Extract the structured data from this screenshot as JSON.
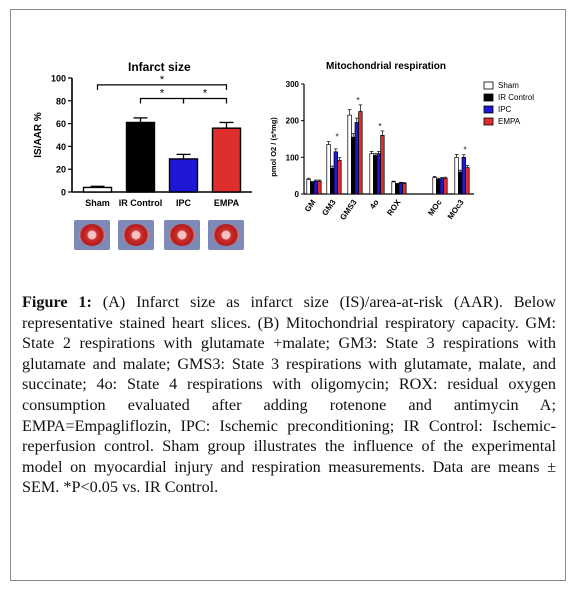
{
  "colors": {
    "sham": "#ffffff",
    "ir_control": "#000000",
    "ipc": "#1f16d6",
    "empa": "#de2e2e",
    "axis": "#000000",
    "frame": "#8a8a8a"
  },
  "chart_data": [
    {
      "type": "bar",
      "title": "Infarct size",
      "xlabel": "",
      "ylabel": "IS/AAR %",
      "ylim": [
        0,
        100
      ],
      "yticks": [
        "0",
        "20",
        "40",
        "60",
        "80",
        "100"
      ],
      "categories": [
        "Sham",
        "IR Control",
        "IPC",
        "EMPA"
      ],
      "values": [
        4,
        61,
        29,
        56
      ],
      "errors": [
        1,
        4,
        4,
        5
      ],
      "bar_colors": [
        "#ffffff",
        "#000000",
        "#1f16d6",
        "#de2e2e"
      ],
      "significance": [
        {
          "from": "Sham",
          "to": "EMPA",
          "label": "*"
        },
        {
          "from": "IR Control",
          "to": "IPC",
          "label": "*"
        },
        {
          "from": "IPC",
          "to": "EMPA",
          "label": "*"
        }
      ],
      "grid": false
    },
    {
      "type": "bar",
      "title": "Mitochondrial respiration",
      "xlabel": "",
      "ylabel": "pmol O2 / (s*mg)",
      "ylim": [
        0,
        300
      ],
      "yticks": [
        "0",
        "100",
        "200",
        "300"
      ],
      "categories": [
        "GM",
        "GM3",
        "GMS3",
        "4o",
        "ROX",
        "MOc",
        "MOc3"
      ],
      "series": [
        {
          "name": "Sham",
          "values": [
            40,
            135,
            215,
            110,
            33,
            45,
            100
          ],
          "errors": [
            3,
            8,
            15,
            6,
            2,
            3,
            8
          ]
        },
        {
          "name": "IR Control",
          "values": [
            32,
            70,
            155,
            105,
            27,
            40,
            60
          ],
          "errors": [
            2,
            6,
            10,
            5,
            2,
            3,
            5
          ]
        },
        {
          "name": "IPC",
          "values": [
            35,
            115,
            195,
            110,
            30,
            42,
            100
          ],
          "errors": [
            3,
            8,
            12,
            6,
            2,
            3,
            7
          ]
        },
        {
          "name": "EMPA",
          "values": [
            35,
            92,
            225,
            160,
            29,
            43,
            72
          ],
          "errors": [
            3,
            7,
            18,
            12,
            2,
            3,
            6
          ]
        }
      ],
      "significance_marks": [
        {
          "category": "GM3",
          "label": "*"
        },
        {
          "category": "GMS3",
          "label": "*"
        },
        {
          "category": "4o",
          "label": "*"
        },
        {
          "category": "MOc3",
          "label": "*"
        }
      ],
      "legend": "top-right",
      "grid": false
    }
  ],
  "slices": [
    {
      "name": "heart-slice-1"
    },
    {
      "name": "heart-slice-2"
    },
    {
      "name": "heart-slice-3"
    },
    {
      "name": "heart-slice-4"
    }
  ],
  "caption": {
    "label": "Figure 1:",
    "text": " (A) Infarct size as infarct size (IS)/area-at-risk (AAR). Below representative stained heart slices. (B) Mitochondrial respiratory capacity. GM: State 2 respirations with glutamate +malate; GM3: State 3 respirations with glutamate and malate; GMS3: State 3 respirations with glutamate, malate, and succinate; 4o: State 4 respirations with oligomycin; ROX: residual oxygen consumption evaluated after adding rotenone and antimycin A; EMPA=Empagliflozin, IPC: Ischemic preconditioning; IR Control: Ischemic-reperfusion control. Sham group illustrates the influence of the experimental model on myocardial injury and respiration measurements. Data are means ± SEM. *P<0.05 vs. IR Control."
  }
}
